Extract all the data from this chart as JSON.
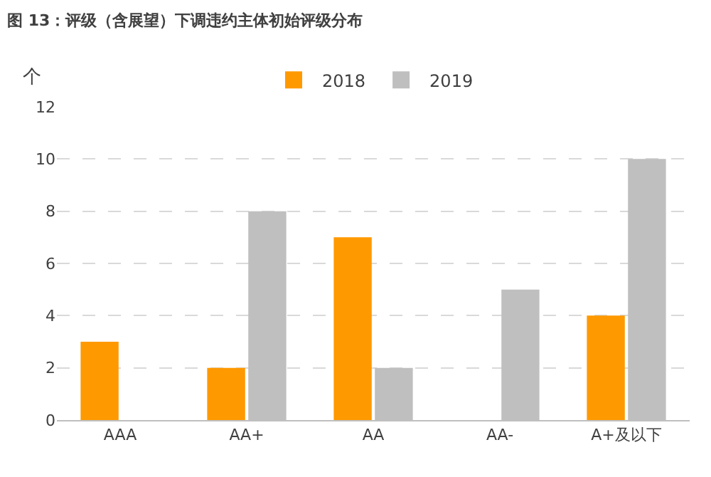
{
  "chart_data": {
    "type": "bar",
    "title": "图 13：评级（含展望）下调违约主体初始评级分布",
    "ylabel": "个",
    "categories": [
      "AAA",
      "AA+",
      "AA",
      "AA-",
      "A+及以下"
    ],
    "series": [
      {
        "name": "2018",
        "color": "#ff9900",
        "values": [
          3,
          2,
          7,
          null,
          4
        ]
      },
      {
        "name": "2019",
        "color": "#bfbfbf",
        "values": [
          null,
          8,
          2,
          5,
          10
        ]
      }
    ],
    "ylim": [
      0,
      12
    ],
    "yticks": [
      0,
      2,
      4,
      6,
      8,
      10,
      12
    ],
    "grid": "y",
    "legend": "top"
  }
}
